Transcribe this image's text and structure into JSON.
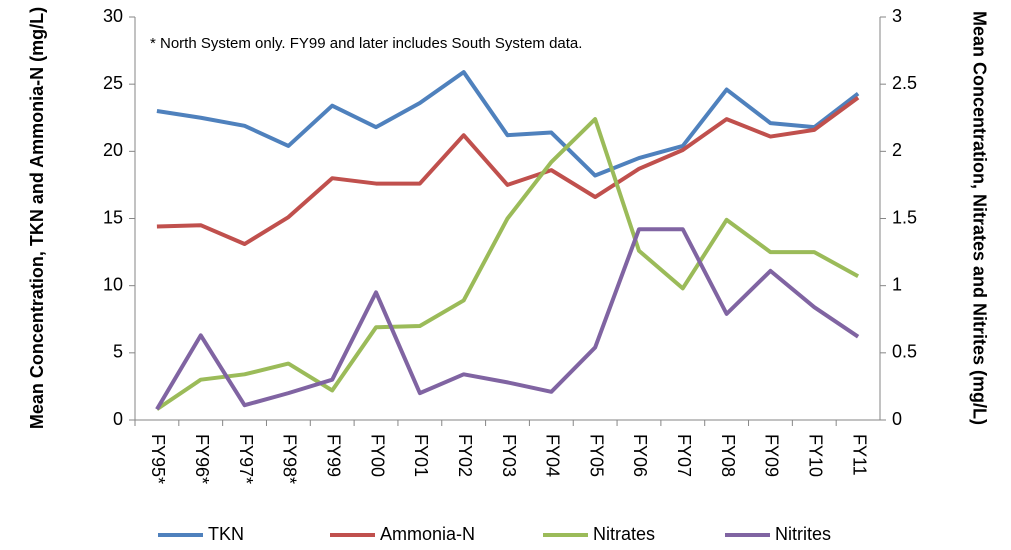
{
  "chart_data": {
    "type": "line",
    "annotation": "*  North System only.  FY99 and later includes South System data.",
    "y_label": "Mean Concentration, TKN and Ammonia-N (mg/L)",
    "y2_label": "Mean Concentration, Nitrates and Nitrites (mg/L)",
    "categories": [
      "FY95*",
      "FY96*",
      "FY97*",
      "FY98*",
      "FY99",
      "FY00",
      "FY01",
      "FY02",
      "FY03",
      "FY04",
      "FY05",
      "FY06",
      "FY07",
      "FY08",
      "FY09",
      "FY10",
      "FY11"
    ],
    "series": [
      {
        "name": "TKN",
        "color": "#4f81bd",
        "values": [
          23.0,
          22.5,
          21.9,
          20.4,
          23.4,
          21.8,
          23.6,
          25.9,
          21.2,
          21.4,
          18.2,
          19.5,
          20.4,
          24.6,
          22.1,
          21.8,
          24.3
        ]
      },
      {
        "name": "Ammonia-N",
        "color": "#c0504d",
        "values": [
          14.4,
          14.5,
          13.1,
          15.1,
          18.0,
          17.6,
          17.6,
          21.2,
          17.5,
          18.6,
          16.6,
          18.7,
          20.1,
          22.4,
          21.1,
          21.6,
          24.0
        ]
      },
      {
        "name": "Nitrates",
        "color": "#9bbb59",
        "axis": "y2",
        "values": [
          0.08,
          0.3,
          0.34,
          0.42,
          0.22,
          0.69,
          0.7,
          0.89,
          1.5,
          1.92,
          2.24,
          1.26,
          0.98,
          1.49,
          1.25,
          1.25,
          1.07
        ]
      },
      {
        "name": "Nitrites",
        "color": "#8064a2",
        "axis": "y2",
        "values": [
          0.08,
          0.63,
          0.11,
          0.2,
          0.3,
          0.95,
          0.2,
          0.34,
          0.28,
          0.21,
          0.54,
          1.42,
          1.42,
          0.79,
          1.11,
          0.84,
          0.62
        ]
      }
    ],
    "ylim": [
      0,
      30
    ],
    "yticks": [
      0,
      5,
      10,
      15,
      20,
      25,
      30
    ],
    "y2lim": [
      0,
      3
    ],
    "y2ticks": [
      0,
      0.5,
      1,
      1.5,
      2,
      2.5,
      3
    ],
    "legend": "bottom"
  }
}
